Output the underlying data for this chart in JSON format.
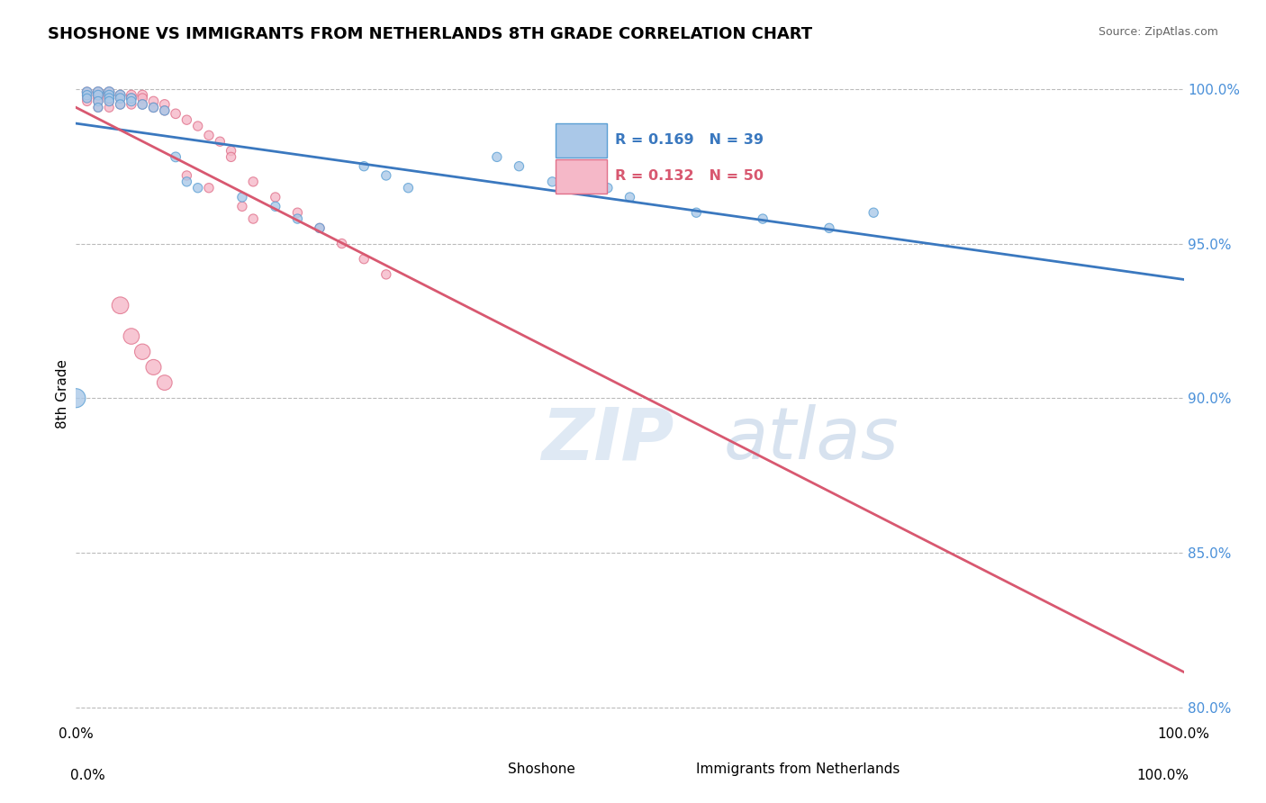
{
  "title": "SHOSHONE VS IMMIGRANTS FROM NETHERLANDS 8TH GRADE CORRELATION CHART",
  "source_text": "Source: ZipAtlas.com",
  "ylabel": "8th Grade",
  "watermark_zip": "ZIP",
  "watermark_atlas": "atlas",
  "xlim": [
    0.0,
    1.0
  ],
  "ylim": [
    0.795,
    1.008
  ],
  "yticks": [
    0.8,
    0.85,
    0.9,
    0.95,
    1.0
  ],
  "ytick_labels": [
    "80.0%",
    "85.0%",
    "90.0%",
    "95.0%",
    "100.0%"
  ],
  "xtick_left": "0.0%",
  "xtick_right": "100.0%",
  "shoshone_color": "#aac8e8",
  "shoshone_edge": "#5a9fd4",
  "netherlands_color": "#f5b8c8",
  "netherlands_edge": "#e0708a",
  "trend_blue": "#3a78bf",
  "trend_pink": "#d85870",
  "ytick_color": "#4a90d9",
  "legend_R_blue": "R = 0.169",
  "legend_N_blue": "N = 39",
  "legend_R_pink": "R = 0.132",
  "legend_N_pink": "N = 50",
  "shoshone_label": "Shoshone",
  "netherlands_label": "Immigrants from Netherlands",
  "shoshone_x": [
    0.01,
    0.01,
    0.01,
    0.02,
    0.02,
    0.02,
    0.02,
    0.03,
    0.03,
    0.03,
    0.03,
    0.04,
    0.04,
    0.04,
    0.05,
    0.05,
    0.06,
    0.07,
    0.08,
    0.09,
    0.1,
    0.11,
    0.15,
    0.18,
    0.2,
    0.22,
    0.26,
    0.28,
    0.3,
    0.38,
    0.4,
    0.43,
    0.48,
    0.5,
    0.56,
    0.62,
    0.68,
    0.72,
    0.0
  ],
  "shoshone_y": [
    0.999,
    0.998,
    0.997,
    0.999,
    0.998,
    0.996,
    0.994,
    0.999,
    0.998,
    0.997,
    0.996,
    0.998,
    0.997,
    0.995,
    0.997,
    0.996,
    0.995,
    0.994,
    0.993,
    0.978,
    0.97,
    0.968,
    0.965,
    0.962,
    0.958,
    0.955,
    0.975,
    0.972,
    0.968,
    0.978,
    0.975,
    0.97,
    0.968,
    0.965,
    0.96,
    0.958,
    0.955,
    0.96,
    0.9
  ],
  "shoshone_size": [
    60,
    55,
    50,
    65,
    60,
    55,
    50,
    65,
    60,
    58,
    55,
    62,
    58,
    55,
    60,
    55,
    58,
    55,
    55,
    60,
    55,
    55,
    55,
    55,
    55,
    55,
    55,
    55,
    55,
    55,
    55,
    55,
    55,
    55,
    55,
    55,
    55,
    55,
    230
  ],
  "netherlands_x": [
    0.01,
    0.01,
    0.01,
    0.01,
    0.02,
    0.02,
    0.02,
    0.02,
    0.02,
    0.03,
    0.03,
    0.03,
    0.03,
    0.03,
    0.04,
    0.04,
    0.04,
    0.05,
    0.05,
    0.05,
    0.06,
    0.06,
    0.06,
    0.07,
    0.07,
    0.08,
    0.08,
    0.09,
    0.1,
    0.11,
    0.12,
    0.13,
    0.14,
    0.14,
    0.16,
    0.18,
    0.2,
    0.22,
    0.24,
    0.26,
    0.28,
    0.1,
    0.12,
    0.15,
    0.16,
    0.04,
    0.05,
    0.06,
    0.07,
    0.08
  ],
  "netherlands_y": [
    0.999,
    0.998,
    0.997,
    0.996,
    0.999,
    0.998,
    0.997,
    0.996,
    0.994,
    0.999,
    0.998,
    0.997,
    0.996,
    0.994,
    0.998,
    0.997,
    0.995,
    0.998,
    0.997,
    0.995,
    0.998,
    0.997,
    0.995,
    0.996,
    0.994,
    0.995,
    0.993,
    0.992,
    0.99,
    0.988,
    0.985,
    0.983,
    0.98,
    0.978,
    0.97,
    0.965,
    0.96,
    0.955,
    0.95,
    0.945,
    0.94,
    0.972,
    0.968,
    0.962,
    0.958,
    0.93,
    0.92,
    0.915,
    0.91,
    0.905
  ],
  "netherlands_size": [
    60,
    58,
    55,
    52,
    65,
    62,
    58,
    55,
    52,
    65,
    62,
    58,
    55,
    52,
    62,
    58,
    55,
    62,
    58,
    55,
    62,
    58,
    55,
    60,
    55,
    60,
    55,
    58,
    55,
    55,
    55,
    55,
    55,
    55,
    55,
    55,
    55,
    55,
    55,
    55,
    55,
    55,
    55,
    55,
    55,
    180,
    160,
    155,
    150,
    145
  ]
}
